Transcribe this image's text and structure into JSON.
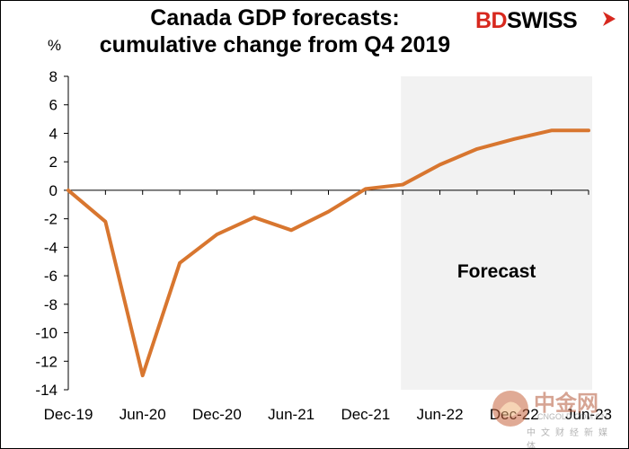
{
  "chart_data": {
    "type": "line",
    "title": "Canada GDP forecasts:\ncumulative change from Q4 2019",
    "ylabel": "%",
    "ylim": [
      -14,
      8
    ],
    "yticks": [
      8,
      6,
      4,
      2,
      0,
      -2,
      -4,
      -6,
      -8,
      -10,
      -12,
      -14
    ],
    "x_labels": [
      "Dec-19",
      "Jun-20",
      "Dec-20",
      "Jun-21",
      "Dec-21",
      "Jun-22",
      "Dec-22",
      "Jun-23"
    ],
    "x": [
      "Dec-19",
      "Mar-20",
      "Jun-20",
      "Sep-20",
      "Dec-20",
      "Mar-21",
      "Jun-21",
      "Sep-21",
      "Dec-21",
      "Mar-22",
      "Jun-22",
      "Sep-22",
      "Dec-22",
      "Mar-23",
      "Jun-23"
    ],
    "series": [
      {
        "values": [
          0,
          -2.2,
          -13.0,
          -5.1,
          -3.1,
          -1.9,
          -2.8,
          -1.5,
          0.1,
          0.4,
          1.8,
          2.9,
          3.6,
          4.2,
          4.2
        ],
        "color": "#d8762f"
      }
    ],
    "forecast_region": {
      "start": "Mar-22",
      "end": "Jun-23",
      "label": "Forecast",
      "color": "#f2f2f2"
    },
    "grid": false,
    "legend": "none"
  },
  "logo": {
    "part1": "BD",
    "part2": "SWISS"
  },
  "watermark": {
    "main": "中金网",
    "url": "CNGOLD.COM.CN",
    "sub": "中文财经新媒体"
  }
}
